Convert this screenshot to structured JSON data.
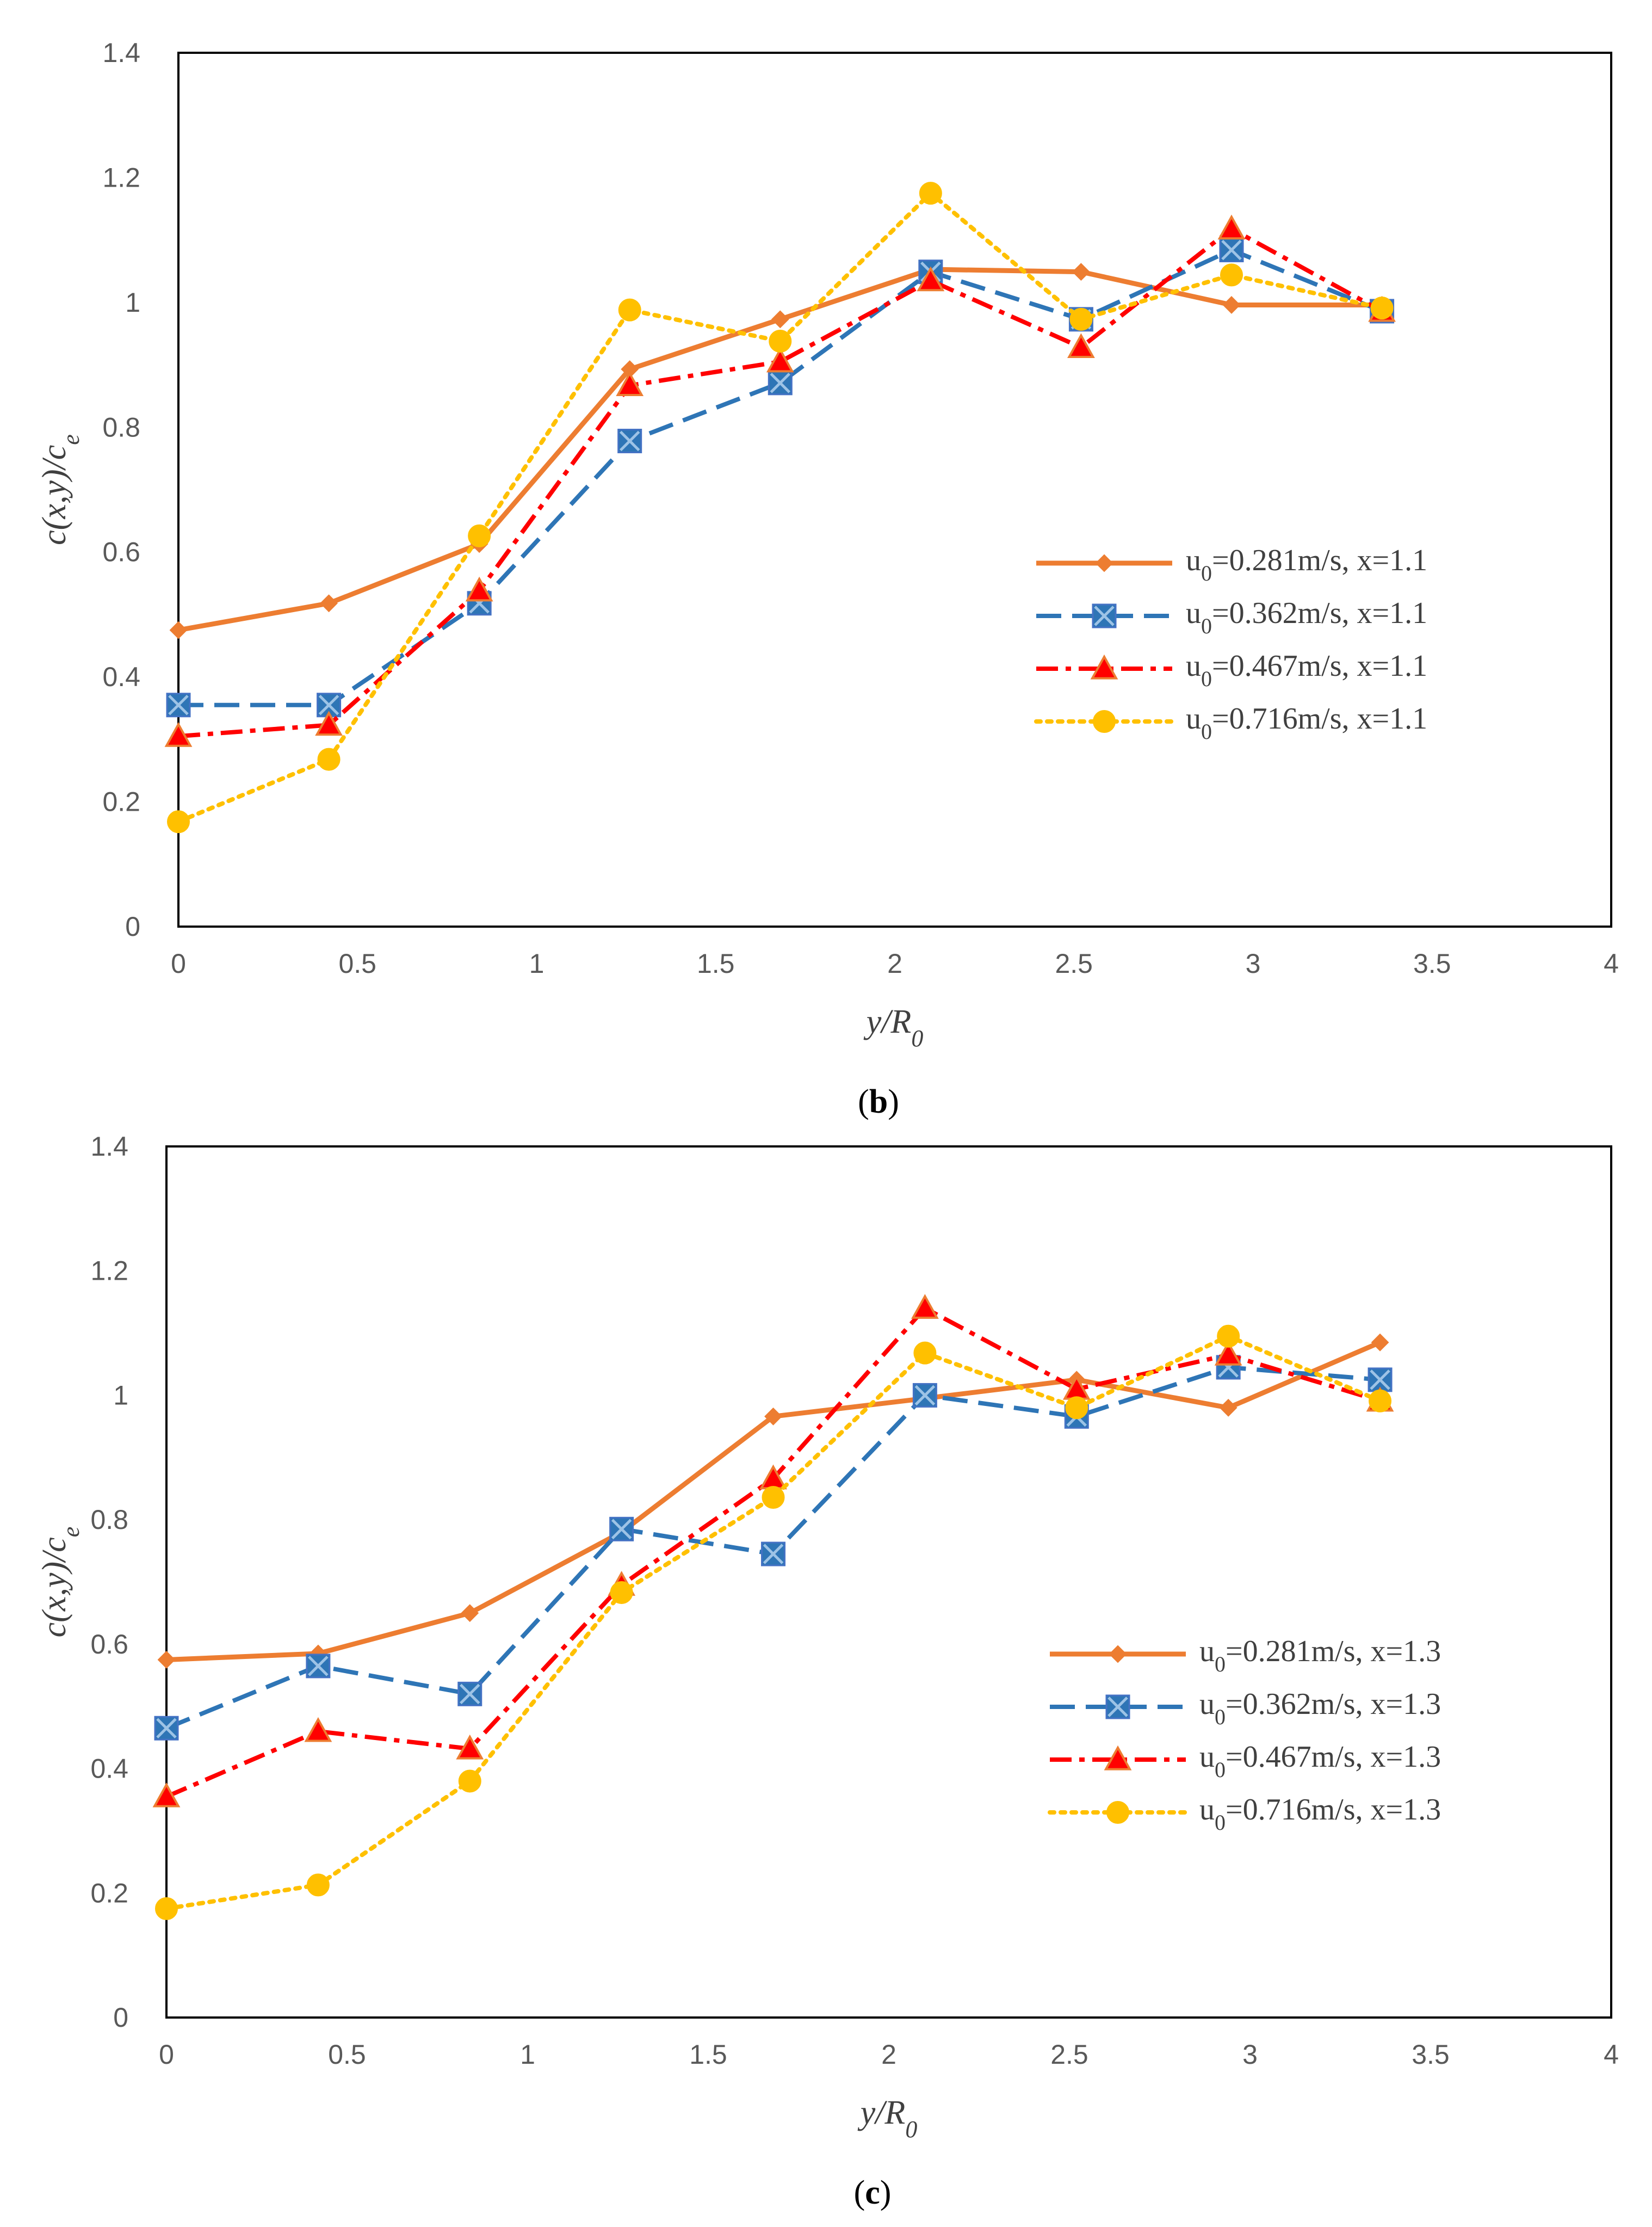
{
  "colors": {
    "axis": "#000000",
    "tick_text": "#595959",
    "axis_title": "#404040",
    "series": [
      "#ED7D31",
      "#2E75B6",
      "#FF0000",
      "#FFC000"
    ]
  },
  "chart_data": [
    {
      "type": "line",
      "panel_label": "(b)",
      "xlabel": "y/R0",
      "ylabel": "c(x,y)/ce",
      "xlim": [
        0,
        4
      ],
      "ylim": [
        0,
        1.4
      ],
      "x_ticks": [
        "0",
        "0.5",
        "1",
        "1.5",
        "2",
        "2.5",
        "3",
        "3.5",
        "4"
      ],
      "y_ticks": [
        "0",
        "0.2",
        "0.4",
        "0.6",
        "0.8",
        "1",
        "1.2",
        "1.4"
      ],
      "grid": false,
      "legend_position": "center-right",
      "x": [
        0,
        0.42,
        0.84,
        1.26,
        1.68,
        2.1,
        2.52,
        2.94,
        3.36
      ],
      "series": [
        {
          "name": "u0=0.281m/s, x=1.1",
          "marker": "diamond",
          "line": "solid",
          "color": "#ED7D31",
          "values": [
            0.475,
            0.518,
            0.613,
            0.893,
            0.973,
            1.053,
            1.049,
            0.996,
            0.996
          ]
        },
        {
          "name": "u0=0.362m/s, x=1.1",
          "marker": "square-x",
          "line": "dash",
          "color": "#2E75B6",
          "values": [
            0.355,
            0.355,
            0.518,
            0.778,
            0.871,
            1.049,
            0.973,
            1.084,
            0.986
          ]
        },
        {
          "name": "u0=0.467m/s, x=1.1",
          "marker": "triangle",
          "line": "dashdot",
          "color": "#FF0000",
          "values": [
            0.305,
            0.323,
            0.538,
            0.867,
            0.905,
            1.035,
            0.928,
            1.118,
            0.986
          ]
        },
        {
          "name": "u0=0.716m/s, x=1.1",
          "marker": "circle",
          "line": "dot",
          "color": "#FFC000",
          "values": [
            0.168,
            0.268,
            0.626,
            0.988,
            0.938,
            1.175,
            0.973,
            1.044,
            0.991
          ]
        }
      ]
    },
    {
      "type": "line",
      "panel_label": "(c)",
      "xlabel": "y/R0",
      "ylabel": "c(x,y)/ce",
      "xlim": [
        0,
        4
      ],
      "ylim": [
        0,
        1.4
      ],
      "x_ticks": [
        "0",
        "0.5",
        "1",
        "1.5",
        "2",
        "2.5",
        "3",
        "3.5",
        "4"
      ],
      "y_ticks": [
        "0",
        "0.2",
        "0.4",
        "0.6",
        "0.8",
        "1",
        "1.2",
        "1.4"
      ],
      "grid": false,
      "legend_position": "center-right",
      "x": [
        0,
        0.42,
        0.84,
        1.26,
        1.68,
        2.1,
        2.52,
        2.94,
        3.36
      ],
      "series": [
        {
          "name": "u0=0.281m/s, x=1.3",
          "marker": "diamond",
          "line": "solid",
          "color": "#ED7D31",
          "values": [
            0.575,
            0.585,
            0.65,
            0.78,
            0.966,
            0.995,
            1.025,
            0.98,
            1.085
          ]
        },
        {
          "name": "u0=0.362m/s, x=1.3",
          "marker": "square-x",
          "line": "dash",
          "color": "#2E75B6",
          "values": [
            0.465,
            0.565,
            0.52,
            0.785,
            0.745,
            1.0,
            0.966,
            1.045,
            1.025
          ]
        },
        {
          "name": "u0=0.467m/s, x=1.3",
          "marker": "triangle",
          "line": "dashdot",
          "color": "#FF0000",
          "values": [
            0.355,
            0.46,
            0.432,
            0.695,
            0.866,
            1.14,
            1.01,
            1.065,
            0.991
          ]
        },
        {
          "name": "u0=0.716m/s, x=1.3",
          "marker": "circle",
          "line": "dot",
          "color": "#FFC000",
          "values": [
            0.175,
            0.213,
            0.38,
            0.683,
            0.836,
            1.068,
            0.98,
            1.095,
            0.991
          ]
        }
      ]
    }
  ]
}
